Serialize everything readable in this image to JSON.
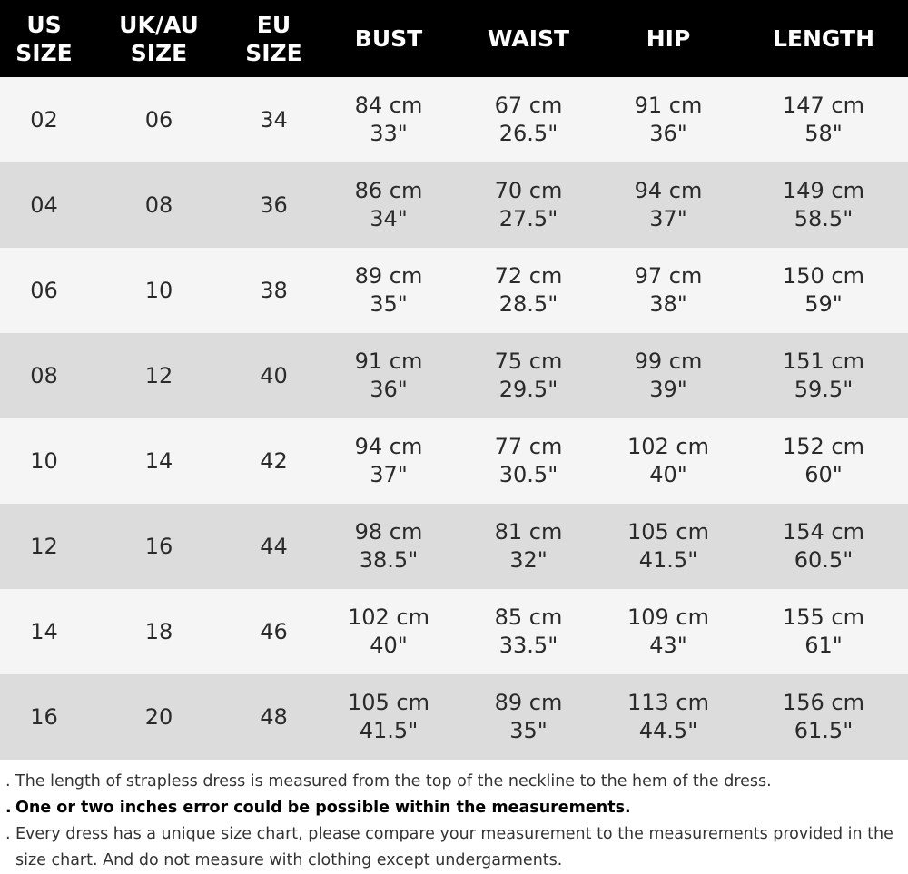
{
  "table": {
    "headers": {
      "us": "US\nSIZE",
      "uk_au": "UK/AU\nSIZE",
      "eu": "EU\nSIZE",
      "bust": "BUST",
      "waist": "WAIST",
      "hip": "HIP",
      "length": "LENGTH"
    },
    "rows": [
      {
        "us": "02",
        "uk_au": "06",
        "eu": "34",
        "bust_cm": "84 cm",
        "bust_in": "33\"",
        "waist_cm": "67 cm",
        "waist_in": "26.5\"",
        "hip_cm": "91 cm",
        "hip_in": "36\"",
        "length_cm": "147 cm",
        "length_in": "58\""
      },
      {
        "us": "04",
        "uk_au": "08",
        "eu": "36",
        "bust_cm": "86 cm",
        "bust_in": "34\"",
        "waist_cm": "70 cm",
        "waist_in": "27.5\"",
        "hip_cm": "94 cm",
        "hip_in": "37\"",
        "length_cm": "149 cm",
        "length_in": "58.5\""
      },
      {
        "us": "06",
        "uk_au": "10",
        "eu": "38",
        "bust_cm": "89 cm",
        "bust_in": "35\"",
        "waist_cm": "72 cm",
        "waist_in": "28.5\"",
        "hip_cm": "97 cm",
        "hip_in": "38\"",
        "length_cm": "150 cm",
        "length_in": "59\""
      },
      {
        "us": "08",
        "uk_au": "12",
        "eu": "40",
        "bust_cm": "91 cm",
        "bust_in": "36\"",
        "waist_cm": "75 cm",
        "waist_in": "29.5\"",
        "hip_cm": "99 cm",
        "hip_in": "39\"",
        "length_cm": "151 cm",
        "length_in": "59.5\""
      },
      {
        "us": "10",
        "uk_au": "14",
        "eu": "42",
        "bust_cm": "94 cm",
        "bust_in": "37\"",
        "waist_cm": "77 cm",
        "waist_in": "30.5\"",
        "hip_cm": "102 cm",
        "hip_in": "40\"",
        "length_cm": "152 cm",
        "length_in": "60\""
      },
      {
        "us": "12",
        "uk_au": "16",
        "eu": "44",
        "bust_cm": "98 cm",
        "bust_in": "38.5\"",
        "waist_cm": "81 cm",
        "waist_in": "32\"",
        "hip_cm": "105 cm",
        "hip_in": "41.5\"",
        "length_cm": "154 cm",
        "length_in": "60.5\""
      },
      {
        "us": "14",
        "uk_au": "18",
        "eu": "46",
        "bust_cm": "102 cm",
        "bust_in": "40\"",
        "waist_cm": "85 cm",
        "waist_in": "33.5\"",
        "hip_cm": "109 cm",
        "hip_in": "43\"",
        "length_cm": "155 cm",
        "length_in": "61\""
      },
      {
        "us": "16",
        "uk_au": "20",
        "eu": "48",
        "bust_cm": "105 cm",
        "bust_in": "41.5\"",
        "waist_cm": "89 cm",
        "waist_in": "35\"",
        "hip_cm": "113 cm",
        "hip_in": "44.5\"",
        "length_cm": "156 cm",
        "length_in": "61.5\""
      }
    ]
  },
  "notes": {
    "bullet": ".",
    "items": [
      {
        "text": "The length of strapless dress is measured from the top of the neckline to the hem of the dress.",
        "bold": false
      },
      {
        "text": "One or two inches error could be possible within the measurements.",
        "bold": true
      },
      {
        "text": "Every dress has a unique size chart, please compare your measurement to the measurements provided in the size chart. And do not measure with clothing except undergarments.",
        "bold": false
      }
    ]
  },
  "colors": {
    "header_bg": "#000000",
    "header_text": "#ffffff",
    "row_light": "#f5f5f5",
    "row_dark": "#dcdcdc"
  }
}
